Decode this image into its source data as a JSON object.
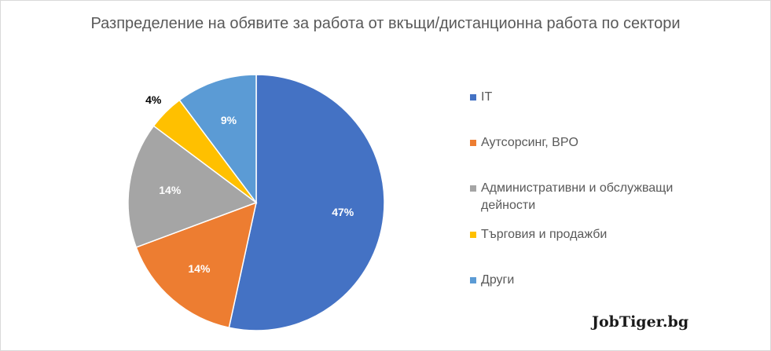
{
  "chart_data": {
    "type": "pie",
    "title": "Разпределение на обявите за работа от вкъщи/дистанционна работа по сектори",
    "categories": [
      "IT",
      "Аутсорсинг, BPO",
      "Административни и обслужващи дейности",
      "Търговия и продажби",
      "Други"
    ],
    "values": [
      47,
      14,
      14,
      4,
      9
    ],
    "labels": [
      "47%",
      "14%",
      "14%",
      "4%",
      "9%"
    ],
    "colors": [
      "#4472c4",
      "#ed7d31",
      "#a5a5a5",
      "#ffc000",
      "#5b9bd5"
    ],
    "legend": "right"
  },
  "logo": "JobTiger.bg"
}
